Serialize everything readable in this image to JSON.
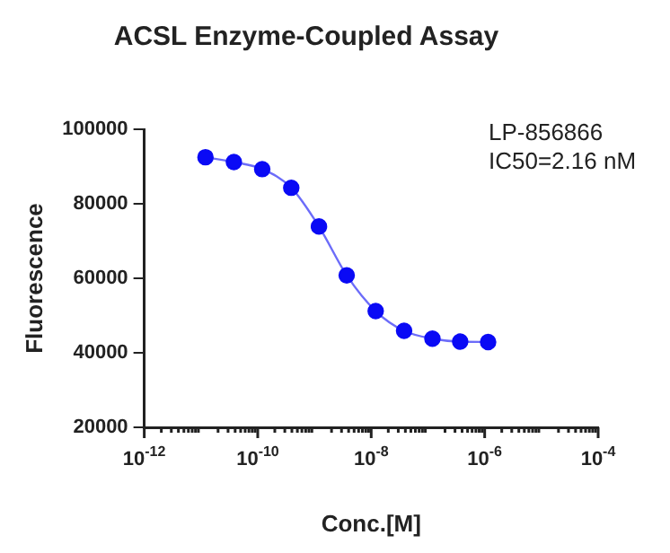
{
  "chart_data": {
    "type": "line",
    "title": "ACSL Enzyme-Coupled Assay",
    "xlabel": "Conc.[M]",
    "ylabel": "Fluorescence",
    "annotations": [
      "LP-856866",
      "IC50=2.16 nM"
    ],
    "log": "x",
    "marker": "circle",
    "grid": false,
    "line_style": "solid",
    "x": [
      1.2e-11,
      3.8e-11,
      1.2e-10,
      3.9e-10,
      1.2e-09,
      3.7e-09,
      1.2e-08,
      3.8e-08,
      1.2e-07,
      3.7e-07,
      1.15e-06
    ],
    "series": [
      {
        "color": "#0a0af5",
        "values": [
          92500,
          91200,
          89300,
          84300,
          73900,
          60800,
          51200,
          45900,
          43800,
          43000,
          42900
        ]
      }
    ],
    "xlim": [
      1e-12,
      0.0001
    ],
    "xticks": [
      {
        "value": 1e-12,
        "label": "10$^{-12}$"
      },
      {
        "value": 1e-10,
        "label": "10$^{-10}$"
      },
      {
        "value": 1e-08,
        "label": "10$^{-8}$"
      },
      {
        "value": 1e-06,
        "label": "10$^{-6}$"
      },
      {
        "value": 0.0001,
        "label": "10$^{-4}$"
      }
    ],
    "ylim": [
      20000,
      100000
    ],
    "yticks": [
      20000,
      40000,
      60000,
      80000,
      100000
    ]
  }
}
